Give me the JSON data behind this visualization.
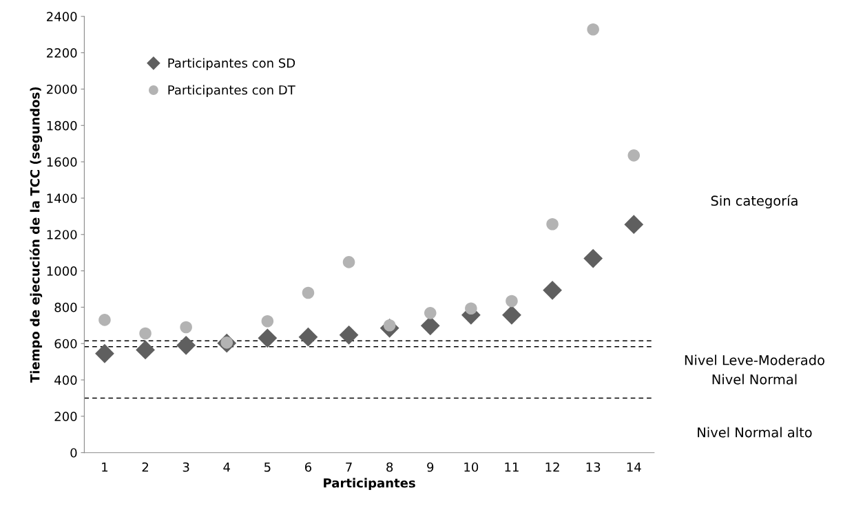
{
  "chart_data": {
    "type": "scatter",
    "xlabel": "Participantes",
    "ylabel": "Tiempo de ejecución de la TCC (segundos)",
    "categories": [
      "1",
      "2",
      "3",
      "4",
      "5",
      "6",
      "7",
      "8",
      "9",
      "10",
      "11",
      "12",
      "13",
      "14"
    ],
    "series": [
      {
        "name": "Participantes con SD",
        "color": "#5f5f5f",
        "marker": "diamond",
        "values": [
          545,
          565,
          590,
          602,
          630,
          636,
          647,
          685,
          698,
          757,
          757,
          893,
          1068,
          1255
        ]
      },
      {
        "name": "Participantes con DT",
        "color": "#b3b3b3",
        "marker": "circle",
        "values": [
          730,
          656,
          690,
          605,
          723,
          879,
          1048,
          700,
          768,
          793,
          834,
          1257,
          2328,
          1635
        ]
      }
    ],
    "ylim": [
      0,
      2400
    ],
    "yticks": [
      0,
      200,
      400,
      600,
      800,
      1000,
      1200,
      1400,
      1600,
      1800,
      2000,
      2200,
      2400
    ],
    "ref_lines": [
      {
        "axis": "y",
        "value": 300,
        "color": "#000000",
        "line_style": "dashed"
      },
      {
        "axis": "y",
        "value": 583,
        "color": "#000000",
        "line_style": "dashed"
      },
      {
        "axis": "y",
        "value": 615,
        "color": "#000000",
        "line_style": "dashed"
      }
    ],
    "annotations": [
      "Sin categoría",
      "Nivel Leve-Moderado",
      "Nivel Normal",
      "Nivel Normal alto"
    ],
    "grid": false,
    "legend": "top left"
  }
}
